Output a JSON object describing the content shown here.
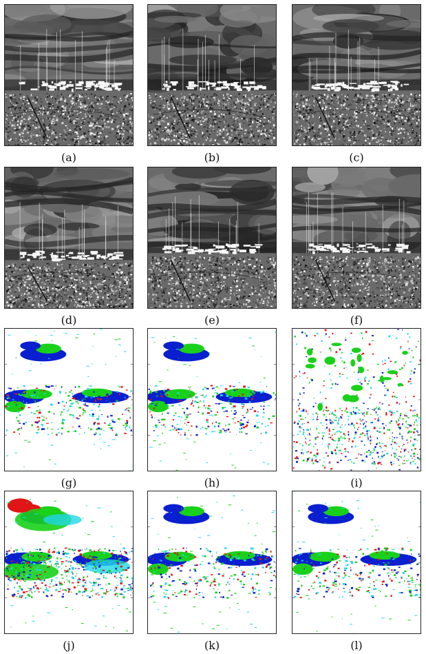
{
  "panels": [
    {
      "label": "(a)",
      "kind": "gray",
      "seed": 11,
      "variant": 0
    },
    {
      "label": "(b)",
      "kind": "gray",
      "seed": 23,
      "variant": 1
    },
    {
      "label": "(c)",
      "kind": "gray",
      "seed": 37,
      "variant": 2
    },
    {
      "label": "(d)",
      "kind": "gray",
      "seed": 41,
      "variant": 3
    },
    {
      "label": "(e)",
      "kind": "gray",
      "seed": 53,
      "variant": 1
    },
    {
      "label": "(f)",
      "kind": "gray",
      "seed": 67,
      "variant": 2
    },
    {
      "label": "(g)",
      "kind": "map",
      "seed": 71,
      "variant": 0
    },
    {
      "label": "(h)",
      "kind": "map",
      "seed": 83,
      "variant": 1
    },
    {
      "label": "(i)",
      "kind": "map",
      "seed": 97,
      "variant": 2
    },
    {
      "label": "(j)",
      "kind": "map",
      "seed": 101,
      "variant": 3
    },
    {
      "label": "(k)",
      "kind": "map",
      "seed": 113,
      "variant": 4
    },
    {
      "label": "(l)",
      "kind": "map",
      "seed": 127,
      "variant": 5
    }
  ],
  "colors": {
    "blue": "#0a1fd0",
    "green": "#19d11a",
    "red": "#e01515",
    "cyan": "#22d8e6",
    "magenta": "#c020c0"
  }
}
